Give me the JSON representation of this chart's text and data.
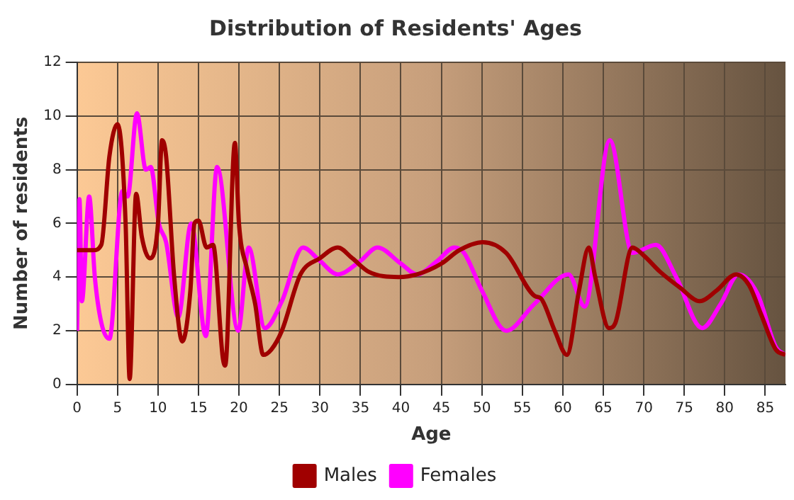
{
  "chart_data": {
    "type": "line",
    "title": "Distribution of Residents' Ages",
    "xlabel": "Age",
    "ylabel": "Number of residents",
    "xlim": [
      0,
      87.5
    ],
    "xticks": [
      0,
      5,
      10,
      15,
      20,
      25,
      30,
      35,
      40,
      45,
      50,
      55,
      60,
      65,
      70,
      75,
      80,
      85
    ],
    "ylim": [
      0,
      12
    ],
    "yticks": [
      0,
      2,
      4,
      6,
      8,
      10,
      12
    ],
    "grid": true,
    "legend": "bottom",
    "marker": "none",
    "series": [
      {
        "name": "Males",
        "color": "#a00000",
        "x": [
          0,
          1,
          2,
          3,
          4,
          5,
          6,
          6.5,
          7.3,
          8,
          9,
          10,
          10.5,
          11,
          12,
          13,
          14,
          14.5,
          15,
          16,
          16.8,
          18,
          18.3,
          19.5,
          20,
          21,
          22,
          23,
          24,
          25.3,
          27.6,
          30,
          32.2,
          34,
          36,
          39.7,
          42,
          45,
          47.2,
          50.1,
          53,
          56.5,
          57.3,
          59,
          60.5,
          62,
          63.2,
          64,
          65.7,
          66.5,
          68.6,
          70,
          72,
          74.5,
          76.9,
          79,
          81.4,
          83,
          84.5,
          86.3,
          87.5
        ],
        "values": [
          5,
          5,
          5,
          5.2,
          8.5,
          9.7,
          6,
          0.2,
          7.1,
          5.5,
          4.7,
          6,
          9.1,
          8.5,
          4,
          1.6,
          3.5,
          6,
          6.1,
          5.1,
          5.2,
          1,
          0.7,
          9,
          6,
          4.3,
          3,
          1.1,
          1.3,
          2,
          4.1,
          4.7,
          5.1,
          4.7,
          4.2,
          4,
          4.1,
          4.5,
          5,
          5.3,
          4.9,
          3.3,
          3.2,
          2,
          1.1,
          3.5,
          5.1,
          4,
          2.1,
          2.3,
          5.1,
          4.8,
          4.2,
          3.6,
          3.1,
          3.5,
          4.1,
          3.7,
          2.6,
          1.3,
          1.1
        ]
      },
      {
        "name": "Females",
        "color": "#ff00ff",
        "x": [
          0,
          0.3,
          0.6,
          1.5,
          2.2,
          3,
          4,
          5.6,
          6.25,
          7.4,
          8.5,
          9.1,
          10.1,
          11,
          12.5,
          14.1,
          15.9,
          17.3,
          19.9,
          21.2,
          23.2,
          25.3,
          27.9,
          30,
          32.2,
          35,
          37.1,
          40,
          42,
          44.5,
          46.6,
          47.8,
          50,
          53,
          56.5,
          60.7,
          62.7,
          65.8,
          68.6,
          71.5,
          74,
          77.2,
          79.5,
          81.7,
          84,
          86.3,
          87.5
        ],
        "values": [
          2,
          6.9,
          3.1,
          7,
          4,
          2.3,
          1.7,
          7.2,
          7,
          10.1,
          8,
          8.1,
          6,
          5.3,
          2.5,
          6,
          1.8,
          8.1,
          2,
          5.1,
          2.1,
          3.1,
          5.1,
          4.6,
          4.1,
          4.6,
          5.1,
          4.5,
          4.1,
          4.6,
          5.1,
          4.9,
          3.5,
          2,
          3,
          4.1,
          2.9,
          9.1,
          4.9,
          5.2,
          4,
          2.1,
          3,
          4.1,
          3.4,
          1.4,
          1.1
        ]
      }
    ]
  }
}
